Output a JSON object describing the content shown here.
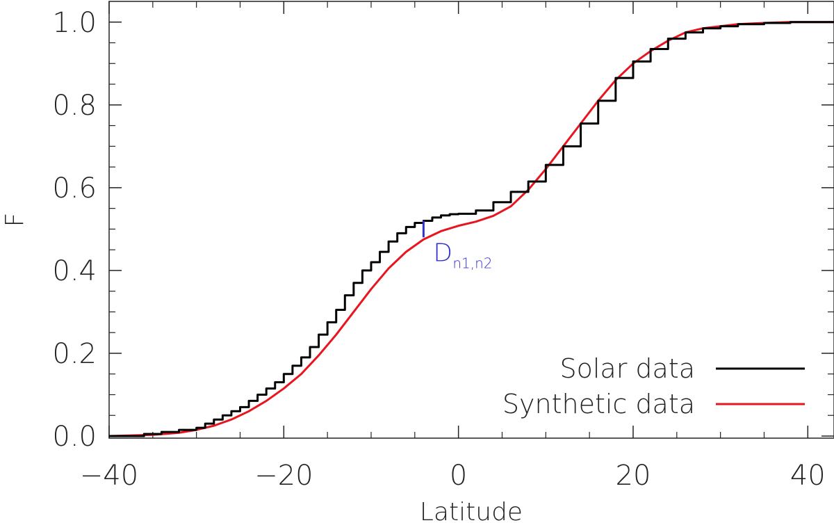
{
  "chart_data": {
    "type": "line",
    "xlabel": "Latitude",
    "ylabel": "F",
    "xlim": [
      -40,
      43
    ],
    "ylim": [
      -0.005,
      1.05
    ],
    "xticks": [
      -40,
      -20,
      0,
      20,
      40
    ],
    "xtick_labels": [
      "−40",
      "−20",
      "0",
      "20",
      "40"
    ],
    "yticks": [
      0.0,
      0.2,
      0.4,
      0.6,
      0.8,
      1.0
    ],
    "ytick_labels": [
      "0.0",
      "0.2",
      "0.4",
      "0.6",
      "0.8",
      "1.0"
    ],
    "grid": false,
    "legend_position": "bottom-right",
    "series": [
      {
        "name": "Solar data",
        "color": "#000000",
        "style": "step",
        "x": [
          -40,
          -36,
          -34,
          -32,
          -30,
          -29,
          -28,
          -27,
          -26,
          -25,
          -24,
          -23,
          -22,
          -21,
          -20,
          -19,
          -18,
          -17,
          -16,
          -15,
          -14,
          -13,
          -12,
          -11,
          -10,
          -9,
          -8,
          -7,
          -6,
          -5,
          -4,
          -3,
          -2,
          -1,
          0,
          2,
          4,
          6,
          8,
          10,
          12,
          14,
          16,
          18,
          20,
          22,
          24,
          26,
          28,
          30,
          32,
          35,
          38,
          43
        ],
        "y": [
          0.0,
          0.005,
          0.01,
          0.015,
          0.02,
          0.03,
          0.04,
          0.05,
          0.06,
          0.07,
          0.085,
          0.1,
          0.115,
          0.13,
          0.15,
          0.17,
          0.19,
          0.215,
          0.245,
          0.275,
          0.305,
          0.34,
          0.37,
          0.4,
          0.42,
          0.445,
          0.47,
          0.49,
          0.505,
          0.515,
          0.52,
          0.528,
          0.533,
          0.536,
          0.537,
          0.545,
          0.565,
          0.59,
          0.615,
          0.655,
          0.7,
          0.755,
          0.81,
          0.865,
          0.905,
          0.935,
          0.96,
          0.975,
          0.985,
          0.99,
          0.995,
          0.998,
          1.0,
          1.0
        ]
      },
      {
        "name": "Synthetic data",
        "color": "#e8141e",
        "style": "line",
        "x": [
          -40,
          -35,
          -32,
          -30,
          -28,
          -26,
          -24,
          -22,
          -20,
          -18,
          -16,
          -14,
          -12,
          -10,
          -8,
          -6,
          -4,
          -2,
          0,
          2,
          4,
          6,
          8,
          10,
          12,
          14,
          16,
          18,
          20,
          22,
          24,
          26,
          28,
          30,
          32,
          35,
          38,
          43
        ],
        "y": [
          0.0,
          0.003,
          0.008,
          0.015,
          0.025,
          0.04,
          0.06,
          0.085,
          0.115,
          0.15,
          0.195,
          0.245,
          0.3,
          0.355,
          0.405,
          0.445,
          0.475,
          0.495,
          0.508,
          0.518,
          0.532,
          0.555,
          0.595,
          0.645,
          0.7,
          0.755,
          0.81,
          0.86,
          0.9,
          0.93,
          0.955,
          0.975,
          0.985,
          0.99,
          0.995,
          0.998,
          1.0,
          1.0
        ]
      }
    ],
    "annotations": [
      {
        "label": "D",
        "subscript": "n1,n2",
        "color": "#3333cc",
        "x": -4,
        "y_from": 0.48,
        "y_to": 0.52
      }
    ]
  }
}
